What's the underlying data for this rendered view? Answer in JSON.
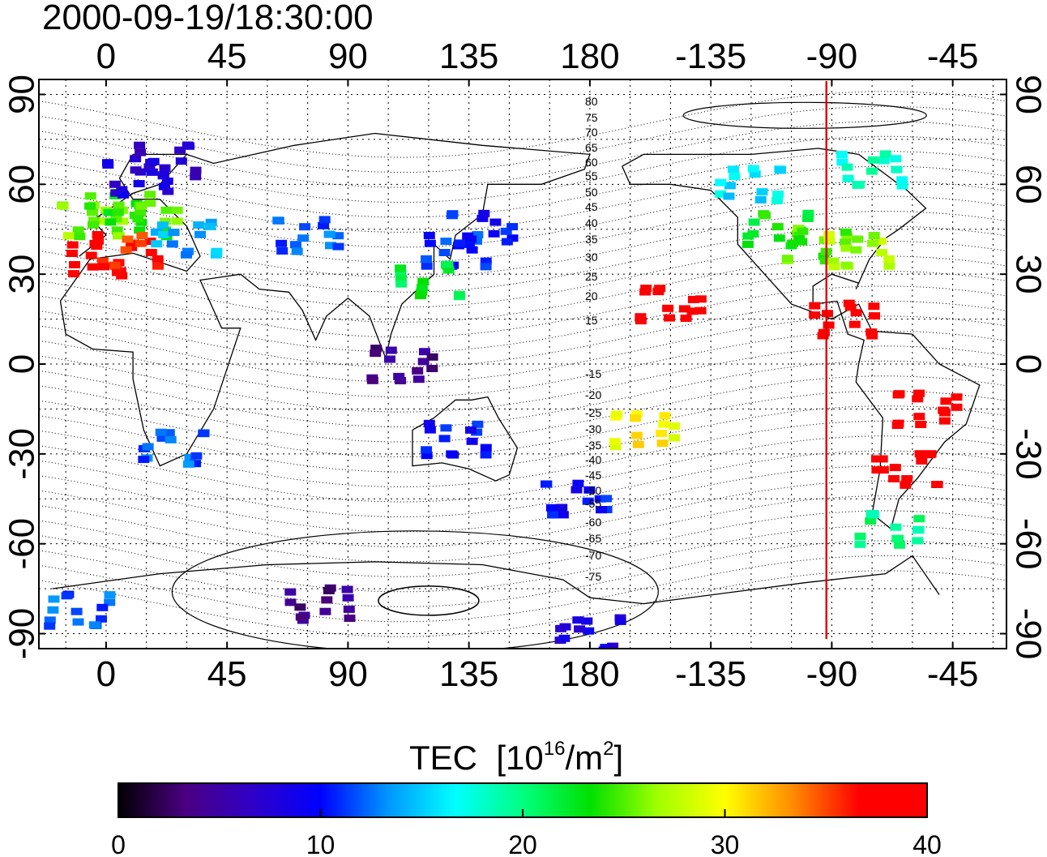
{
  "title": "2000-09-19/18:30:00",
  "map": {
    "lon_ticks": [
      "0",
      "45",
      "90",
      "135",
      "180",
      "-135",
      "-90",
      "-45"
    ],
    "lat_ticks": [
      "90",
      "60",
      "30",
      "0",
      "-30",
      "-60",
      "-90"
    ],
    "marker_longitude": -92,
    "marker_color": "#e00000",
    "lon_range": [
      -25,
      335
    ],
    "lat_range": [
      -95,
      95
    ],
    "contour_labels": [
      "80",
      "75",
      "70",
      "65",
      "60",
      "55",
      "50",
      "45",
      "40",
      "35",
      "30",
      "25",
      "20",
      "15",
      "-15",
      "-20",
      "-25",
      "-30",
      "-35",
      "-40",
      "-45",
      "-50",
      "-55",
      "-60",
      "-65",
      "-70",
      "-75"
    ],
    "tec_patches": [
      {
        "lon": -5,
        "lat": 48,
        "tec": 26
      },
      {
        "lon": 5,
        "lat": 52,
        "tec": 24
      },
      {
        "lon": 15,
        "lat": 48,
        "tec": 25
      },
      {
        "lon": -2,
        "lat": 35,
        "tec": 38
      },
      {
        "lon": 8,
        "lat": 38,
        "tec": 36
      },
      {
        "lon": 12,
        "lat": 62,
        "tec": 8
      },
      {
        "lon": 22,
        "lat": 68,
        "tec": 7
      },
      {
        "lon": 30,
        "lat": 42,
        "tec": 14
      },
      {
        "lon": 25,
        "lat": -28,
        "tec": 12
      },
      {
        "lon": 75,
        "lat": 43,
        "tec": 12
      },
      {
        "lon": 130,
        "lat": 38,
        "tec": 11
      },
      {
        "lon": 140,
        "lat": 45,
        "tec": 10
      },
      {
        "lon": 120,
        "lat": 28,
        "tec": 22
      },
      {
        "lon": 110,
        "lat": 0,
        "tec": 4
      },
      {
        "lon": 130,
        "lat": -25,
        "tec": 10
      },
      {
        "lon": 175,
        "lat": -45,
        "tec": 10
      },
      {
        "lon": -95,
        "lat": 40,
        "tec": 25
      },
      {
        "lon": -80,
        "lat": 38,
        "tec": 27
      },
      {
        "lon": -110,
        "lat": 45,
        "tec": 23
      },
      {
        "lon": -120,
        "lat": 60,
        "tec": 16
      },
      {
        "lon": -75,
        "lat": 65,
        "tec": 18
      },
      {
        "lon": -150,
        "lat": 20,
        "tec": 39
      },
      {
        "lon": -85,
        "lat": 15,
        "tec": 39
      },
      {
        "lon": -55,
        "lat": -15,
        "tec": 39
      },
      {
        "lon": -62,
        "lat": -35,
        "tec": 39
      },
      {
        "lon": -68,
        "lat": -55,
        "tec": 20
      },
      {
        "lon": -160,
        "lat": -22,
        "tec": 30
      },
      {
        "lon": 80,
        "lat": -80,
        "tec": 4
      },
      {
        "lon": 180,
        "lat": -90,
        "tec": 8
      },
      {
        "lon": -10,
        "lat": -82,
        "tec": 12
      }
    ]
  },
  "colorbar": {
    "label": "TEC",
    "unit_base": "[10",
    "unit_exp": "16",
    "unit_mid": "/m",
    "unit_exp2": "2",
    "unit_end": "]",
    "min": 0,
    "max": 40,
    "ticks": [
      "0",
      "10",
      "20",
      "30",
      "40"
    ],
    "colors": [
      "#000000",
      "#4b0082",
      "#2f00c8",
      "#0000ff",
      "#0096ff",
      "#00ffff",
      "#00ff7f",
      "#00e000",
      "#a0ff00",
      "#ffff00",
      "#ff8c00",
      "#ff0000",
      "#ff0000"
    ]
  }
}
